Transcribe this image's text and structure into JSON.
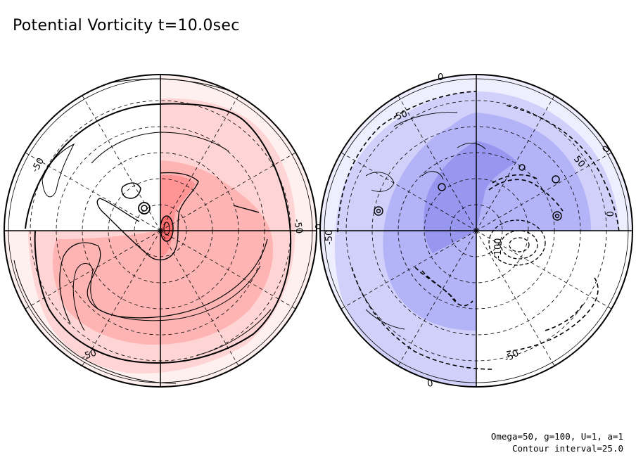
{
  "title": "Potential Vorticity t=10.0sec",
  "params": {
    "line1": "Omega=50, g=100, U=1, a=1",
    "line2": "Contour interval=25.0"
  },
  "colors": {
    "positive_shades": [
      "#fff0f0",
      "#ffd4d4",
      "#ffb4b4",
      "#ff9494",
      "#ff6c6c"
    ],
    "negative_shades": [
      "#eeeeff",
      "#d0d0fb",
      "#b3b3f7",
      "#9797f0"
    ],
    "line": "#000000"
  },
  "maps": [
    {
      "name": "north-hemisphere",
      "contour_labels": [
        "-50",
        "-50",
        "-50",
        "0"
      ]
    },
    {
      "name": "south-hemisphere",
      "contour_labels": [
        "0",
        "-50",
        "0",
        "50",
        "-50",
        "-100",
        "0",
        "-50",
        "0"
      ]
    }
  ]
}
